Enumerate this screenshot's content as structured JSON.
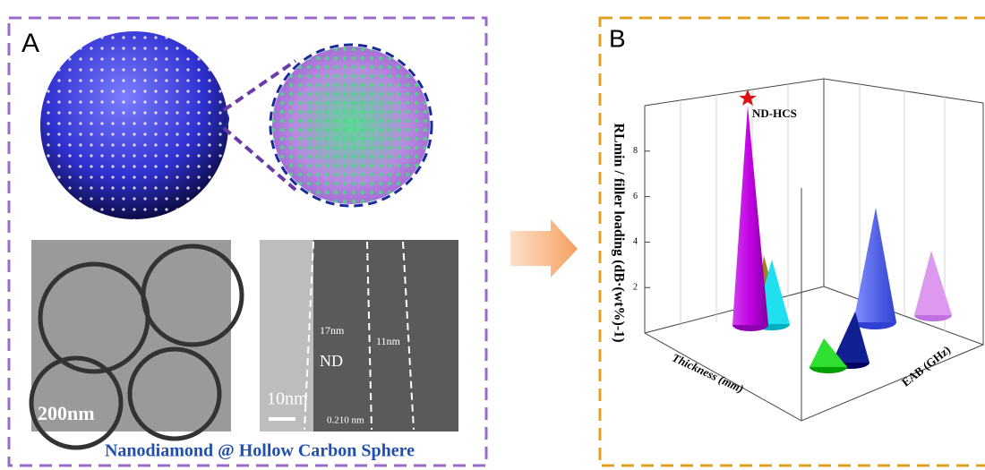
{
  "panel_a": {
    "label": "A",
    "tem_left_scale": "200nm",
    "tem_right_scale": "10nm",
    "shell_thickness_outer": "17nm",
    "shell_thickness_inner": "11nm",
    "core_label": "ND",
    "lattice_spacing": "0.210 nm",
    "caption": "Nanodiamond @ Hollow Carbon Sphere"
  },
  "panel_b": {
    "label": "B",
    "star_label": "ND-HCS",
    "y_axis_label": "RLmin / filler loading (dB·(wt%)-1)",
    "yticks": [
      2,
      4,
      6,
      8
    ],
    "x_axis_label": "Thickness (mm)",
    "z_axis_label": "EAB (GHz)"
  }
}
